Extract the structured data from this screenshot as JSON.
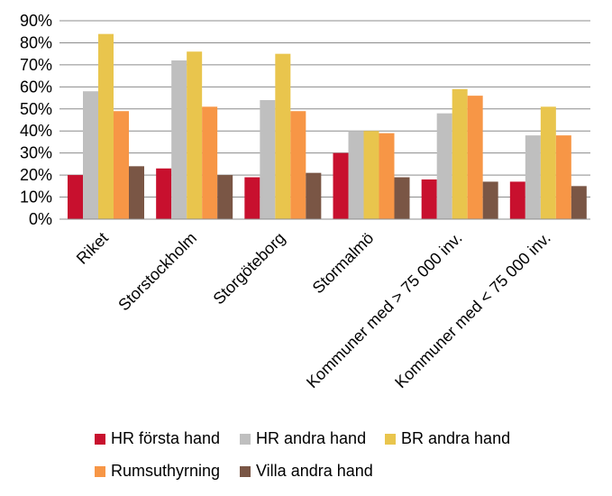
{
  "chart_data": {
    "type": "bar",
    "categories": [
      "Riket",
      "Storstockholm",
      "Storgöteborg",
      "Stormalmö",
      "Kommuner med > 75 000 inv.",
      "Kommuner med < 75 000 inv."
    ],
    "series": [
      {
        "name": "HR första hand",
        "color": "#C8102E",
        "values": [
          20,
          23,
          19,
          30,
          18,
          17
        ]
      },
      {
        "name": "HR andra hand",
        "color": "#BFBFBF",
        "values": [
          58,
          72,
          54,
          40,
          48,
          38
        ]
      },
      {
        "name": "BR andra hand",
        "color": "#E9C54D",
        "values": [
          84,
          76,
          75,
          40,
          59,
          51
        ]
      },
      {
        "name": "Rumsuthyrning",
        "color": "#F79646",
        "values": [
          49,
          51,
          49,
          39,
          56,
          38
        ]
      },
      {
        "name": "Villa andra hand",
        "color": "#7A5645",
        "values": [
          24,
          20,
          21,
          19,
          17,
          15
        ]
      }
    ],
    "ylim": [
      0,
      90
    ],
    "yticks": [
      "0%",
      "10%",
      "20%",
      "30%",
      "40%",
      "50%",
      "60%",
      "70%",
      "80%",
      "90%"
    ],
    "grid": true,
    "legend_position": "bottom"
  }
}
